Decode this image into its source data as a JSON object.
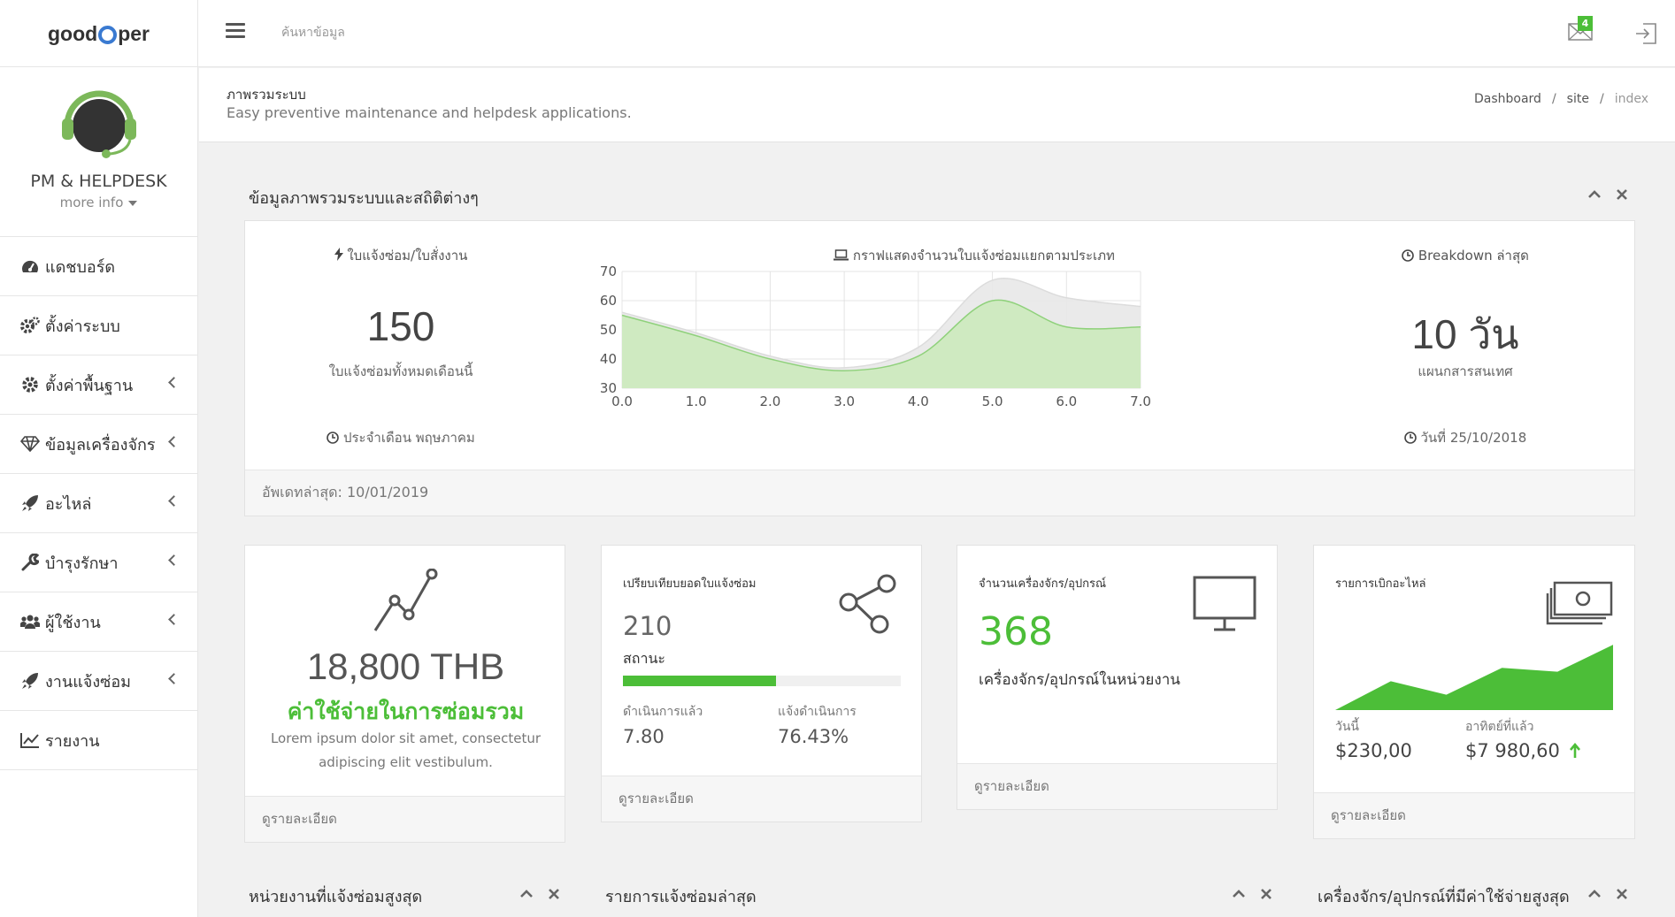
{
  "app": {
    "logo_text_left": "good",
    "logo_text_right": "per"
  },
  "topbar": {
    "search_placeholder": "ค้นหาข้อมูล",
    "mail_badge": "4"
  },
  "profile": {
    "name": "PM & HELPDESK",
    "more_info": "more info"
  },
  "sidebar": {
    "items": [
      {
        "label": "แดชบอร์ด",
        "icon": "dashboard-icon",
        "has_submenu": false
      },
      {
        "label": "ตั้งค่าระบบ",
        "icon": "cogs-icon",
        "has_submenu": false
      },
      {
        "label": "ตั้งค่าพื้นฐาน",
        "icon": "gear-icon",
        "has_submenu": true
      },
      {
        "label": "ข้อมูลเครื่องจักร",
        "icon": "diamond-icon",
        "has_submenu": true
      },
      {
        "label": "อะไหล่",
        "icon": "rocket-icon",
        "has_submenu": true
      },
      {
        "label": "บำรุงรักษา",
        "icon": "wrench-icon",
        "has_submenu": true
      },
      {
        "label": "ผู้ใช้งาน",
        "icon": "users-icon",
        "has_submenu": true
      },
      {
        "label": "งานแจ้งซ่อม",
        "icon": "rocket-icon",
        "has_submenu": true
      },
      {
        "label": "รายงาน",
        "icon": "line-chart-icon",
        "has_submenu": false
      }
    ]
  },
  "page": {
    "title": "ภาพรวมระบบ",
    "subtitle": "Easy preventive maintenance and helpdesk applications.",
    "breadcrumb": [
      "Dashboard",
      "site",
      "index"
    ]
  },
  "overview": {
    "title": "ข้อมูลภาพรวมระบบและสถิติต่างๆ",
    "left": {
      "label": "ใบแจ้งซ่อม/ใบสั่งงาน",
      "value": "150",
      "sub": "ใบแจ้งซ่อมทั้งหมดเดือนนี้",
      "foot": "ประจำเดือน พฤษภาคม"
    },
    "chart_label": "กราฟแสดงจำนวนใบแจ้งซ่อมแยกตามประเภท",
    "right": {
      "label": "Breakdown ล่าสุด",
      "value": "10 วัน",
      "sub": "แผนกสารสนเทศ",
      "foot": "วันที่ 25/10/2018"
    },
    "footer": "อัพเดทล่าสุด: 10/01/2019"
  },
  "chart_data": {
    "type": "area",
    "x": [
      0,
      1,
      2,
      3,
      4,
      5,
      6,
      7
    ],
    "x_ticks": [
      "0.0",
      "1.0",
      "2.0",
      "3.0",
      "4.0",
      "5.0",
      "6.0",
      "7.0"
    ],
    "y_ticks": [
      "30",
      "40",
      "50",
      "60",
      "70"
    ],
    "ylim": [
      30,
      70
    ],
    "xlim": [
      0,
      7
    ],
    "grid": true,
    "series": [
      {
        "color": "#e8e8e8",
        "values": [
          56,
          49,
          41,
          37,
          44,
          67,
          61,
          58
        ]
      },
      {
        "color": "#cdeabf",
        "values": [
          55,
          48,
          40,
          36,
          41,
          60,
          51,
          51
        ]
      }
    ]
  },
  "cards": {
    "cost": {
      "value": "18,800 THB",
      "title": "ค่าใช้จ่ายในการซ่อมรวม",
      "desc": "Lorem ipsum dolor sit amet, consectetur adipiscing elit vestibulum.",
      "link": "ดูรายละเอียด"
    },
    "compare": {
      "title": "เปรียบเทียบยอดใบแจ้งซ่อม",
      "value": "210",
      "status": "สถานะ",
      "progress": 0.55,
      "done_label": "ดำเนินการแล้ว",
      "done_value": "7.80",
      "pending_label": "แจ้งดำเนินการ",
      "pending_value": "76.43%",
      "link": "ดูรายละเอียด"
    },
    "machines": {
      "title": "จำนวนเครื่องจักร/อุปกรณ์",
      "value": "368",
      "desc": "เครื่องจักร/อุปกรณ์ในหน่วยงาน",
      "link": "ดูรายละเอียด"
    },
    "parts": {
      "title": "รายการเบิกอะไหล่",
      "sparkline": [
        0,
        30,
        16,
        44,
        40,
        68
      ],
      "today_label": "วันนี้",
      "today_value": "$230,00",
      "week_label": "อาทิตย์ที่แล้ว",
      "week_value": "$7 980,60",
      "link": "ดูรายละเอียด"
    }
  },
  "bottom": {
    "panels": [
      "หน่วยงานที่แจ้งซ่อมสูงสุด",
      "รายการแจ้งซ่อมล่าสุด",
      "เครื่องจักร/อุปกรณ์ที่มีค่าใช้จ่ายสูงสุด"
    ]
  },
  "colors": {
    "accent": "#4cbe38",
    "chart_fill": "#cdeabf",
    "chart_line": "#8fd17b"
  }
}
